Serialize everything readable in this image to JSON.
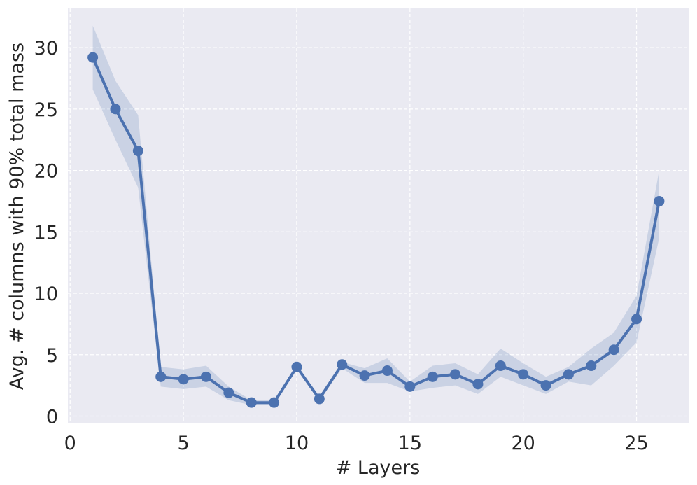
{
  "chart_data": {
    "type": "line",
    "xlabel": "# Layers",
    "ylabel": "Avg. # columns with 90% total mass",
    "xlim": [
      -0.1,
      27.3
    ],
    "ylim": [
      -0.6,
      33.2
    ],
    "xticks": [
      0,
      5,
      10,
      15,
      20,
      25
    ],
    "yticks": [
      0,
      5,
      10,
      15,
      20,
      25,
      30
    ],
    "grid": true,
    "series": [
      {
        "color": "#4c72b0",
        "x": [
          1,
          2,
          3,
          4,
          5,
          6,
          7,
          8,
          9,
          10,
          11,
          12,
          13,
          14,
          15,
          16,
          17,
          18,
          19,
          20,
          21,
          22,
          23,
          24,
          25,
          26
        ],
        "values": [
          29.2,
          25.0,
          21.6,
          3.2,
          3.0,
          3.2,
          1.9,
          1.1,
          1.1,
          4.0,
          1.4,
          4.2,
          3.3,
          3.7,
          2.4,
          3.2,
          3.4,
          2.6,
          4.1,
          3.4,
          2.5,
          3.4,
          4.1,
          5.4,
          7.9,
          17.5
        ],
        "lower": [
          26.6,
          22.5,
          18.6,
          2.4,
          2.2,
          2.4,
          1.3,
          0.9,
          0.9,
          3.8,
          1.2,
          3.9,
          2.7,
          2.7,
          2.0,
          2.3,
          2.5,
          1.8,
          3.2,
          2.5,
          1.8,
          2.8,
          2.5,
          4.1,
          6.0,
          14.5
        ],
        "upper": [
          31.8,
          27.3,
          24.5,
          4.0,
          3.8,
          4.1,
          2.4,
          1.3,
          1.3,
          4.2,
          1.6,
          4.4,
          3.9,
          4.7,
          2.8,
          4.1,
          4.3,
          3.4,
          5.5,
          4.3,
          3.2,
          4.0,
          5.5,
          6.8,
          9.8,
          20.0
        ]
      }
    ]
  }
}
